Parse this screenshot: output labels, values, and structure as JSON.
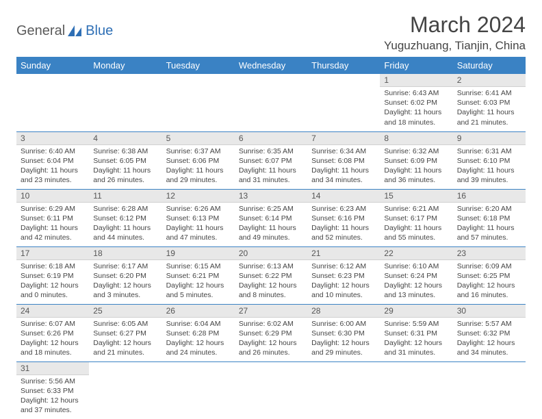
{
  "logo": {
    "text1": "General",
    "text2": "Blue"
  },
  "title": "March 2024",
  "location": "Yuguzhuang, Tianjin, China",
  "colors": {
    "header_bg": "#3a82c4",
    "header_fg": "#ffffff",
    "daynum_bg": "#e8e8e8",
    "rule": "#3a82c4",
    "body_text": "#444444",
    "logo_gray": "#5a5a5a",
    "logo_blue": "#2e6fb5"
  },
  "weekdays": [
    "Sunday",
    "Monday",
    "Tuesday",
    "Wednesday",
    "Thursday",
    "Friday",
    "Saturday"
  ],
  "weeks": [
    [
      null,
      null,
      null,
      null,
      null,
      {
        "n": "1",
        "sr": "Sunrise: 6:43 AM",
        "ss": "Sunset: 6:02 PM",
        "dl1": "Daylight: 11 hours",
        "dl2": "and 18 minutes."
      },
      {
        "n": "2",
        "sr": "Sunrise: 6:41 AM",
        "ss": "Sunset: 6:03 PM",
        "dl1": "Daylight: 11 hours",
        "dl2": "and 21 minutes."
      }
    ],
    [
      {
        "n": "3",
        "sr": "Sunrise: 6:40 AM",
        "ss": "Sunset: 6:04 PM",
        "dl1": "Daylight: 11 hours",
        "dl2": "and 23 minutes."
      },
      {
        "n": "4",
        "sr": "Sunrise: 6:38 AM",
        "ss": "Sunset: 6:05 PM",
        "dl1": "Daylight: 11 hours",
        "dl2": "and 26 minutes."
      },
      {
        "n": "5",
        "sr": "Sunrise: 6:37 AM",
        "ss": "Sunset: 6:06 PM",
        "dl1": "Daylight: 11 hours",
        "dl2": "and 29 minutes."
      },
      {
        "n": "6",
        "sr": "Sunrise: 6:35 AM",
        "ss": "Sunset: 6:07 PM",
        "dl1": "Daylight: 11 hours",
        "dl2": "and 31 minutes."
      },
      {
        "n": "7",
        "sr": "Sunrise: 6:34 AM",
        "ss": "Sunset: 6:08 PM",
        "dl1": "Daylight: 11 hours",
        "dl2": "and 34 minutes."
      },
      {
        "n": "8",
        "sr": "Sunrise: 6:32 AM",
        "ss": "Sunset: 6:09 PM",
        "dl1": "Daylight: 11 hours",
        "dl2": "and 36 minutes."
      },
      {
        "n": "9",
        "sr": "Sunrise: 6:31 AM",
        "ss": "Sunset: 6:10 PM",
        "dl1": "Daylight: 11 hours",
        "dl2": "and 39 minutes."
      }
    ],
    [
      {
        "n": "10",
        "sr": "Sunrise: 6:29 AM",
        "ss": "Sunset: 6:11 PM",
        "dl1": "Daylight: 11 hours",
        "dl2": "and 42 minutes."
      },
      {
        "n": "11",
        "sr": "Sunrise: 6:28 AM",
        "ss": "Sunset: 6:12 PM",
        "dl1": "Daylight: 11 hours",
        "dl2": "and 44 minutes."
      },
      {
        "n": "12",
        "sr": "Sunrise: 6:26 AM",
        "ss": "Sunset: 6:13 PM",
        "dl1": "Daylight: 11 hours",
        "dl2": "and 47 minutes."
      },
      {
        "n": "13",
        "sr": "Sunrise: 6:25 AM",
        "ss": "Sunset: 6:14 PM",
        "dl1": "Daylight: 11 hours",
        "dl2": "and 49 minutes."
      },
      {
        "n": "14",
        "sr": "Sunrise: 6:23 AM",
        "ss": "Sunset: 6:16 PM",
        "dl1": "Daylight: 11 hours",
        "dl2": "and 52 minutes."
      },
      {
        "n": "15",
        "sr": "Sunrise: 6:21 AM",
        "ss": "Sunset: 6:17 PM",
        "dl1": "Daylight: 11 hours",
        "dl2": "and 55 minutes."
      },
      {
        "n": "16",
        "sr": "Sunrise: 6:20 AM",
        "ss": "Sunset: 6:18 PM",
        "dl1": "Daylight: 11 hours",
        "dl2": "and 57 minutes."
      }
    ],
    [
      {
        "n": "17",
        "sr": "Sunrise: 6:18 AM",
        "ss": "Sunset: 6:19 PM",
        "dl1": "Daylight: 12 hours",
        "dl2": "and 0 minutes."
      },
      {
        "n": "18",
        "sr": "Sunrise: 6:17 AM",
        "ss": "Sunset: 6:20 PM",
        "dl1": "Daylight: 12 hours",
        "dl2": "and 3 minutes."
      },
      {
        "n": "19",
        "sr": "Sunrise: 6:15 AM",
        "ss": "Sunset: 6:21 PM",
        "dl1": "Daylight: 12 hours",
        "dl2": "and 5 minutes."
      },
      {
        "n": "20",
        "sr": "Sunrise: 6:13 AM",
        "ss": "Sunset: 6:22 PM",
        "dl1": "Daylight: 12 hours",
        "dl2": "and 8 minutes."
      },
      {
        "n": "21",
        "sr": "Sunrise: 6:12 AM",
        "ss": "Sunset: 6:23 PM",
        "dl1": "Daylight: 12 hours",
        "dl2": "and 10 minutes."
      },
      {
        "n": "22",
        "sr": "Sunrise: 6:10 AM",
        "ss": "Sunset: 6:24 PM",
        "dl1": "Daylight: 12 hours",
        "dl2": "and 13 minutes."
      },
      {
        "n": "23",
        "sr": "Sunrise: 6:09 AM",
        "ss": "Sunset: 6:25 PM",
        "dl1": "Daylight: 12 hours",
        "dl2": "and 16 minutes."
      }
    ],
    [
      {
        "n": "24",
        "sr": "Sunrise: 6:07 AM",
        "ss": "Sunset: 6:26 PM",
        "dl1": "Daylight: 12 hours",
        "dl2": "and 18 minutes."
      },
      {
        "n": "25",
        "sr": "Sunrise: 6:05 AM",
        "ss": "Sunset: 6:27 PM",
        "dl1": "Daylight: 12 hours",
        "dl2": "and 21 minutes."
      },
      {
        "n": "26",
        "sr": "Sunrise: 6:04 AM",
        "ss": "Sunset: 6:28 PM",
        "dl1": "Daylight: 12 hours",
        "dl2": "and 24 minutes."
      },
      {
        "n": "27",
        "sr": "Sunrise: 6:02 AM",
        "ss": "Sunset: 6:29 PM",
        "dl1": "Daylight: 12 hours",
        "dl2": "and 26 minutes."
      },
      {
        "n": "28",
        "sr": "Sunrise: 6:00 AM",
        "ss": "Sunset: 6:30 PM",
        "dl1": "Daylight: 12 hours",
        "dl2": "and 29 minutes."
      },
      {
        "n": "29",
        "sr": "Sunrise: 5:59 AM",
        "ss": "Sunset: 6:31 PM",
        "dl1": "Daylight: 12 hours",
        "dl2": "and 31 minutes."
      },
      {
        "n": "30",
        "sr": "Sunrise: 5:57 AM",
        "ss": "Sunset: 6:32 PM",
        "dl1": "Daylight: 12 hours",
        "dl2": "and 34 minutes."
      }
    ],
    [
      {
        "n": "31",
        "sr": "Sunrise: 5:56 AM",
        "ss": "Sunset: 6:33 PM",
        "dl1": "Daylight: 12 hours",
        "dl2": "and 37 minutes."
      },
      null,
      null,
      null,
      null,
      null,
      null
    ]
  ]
}
